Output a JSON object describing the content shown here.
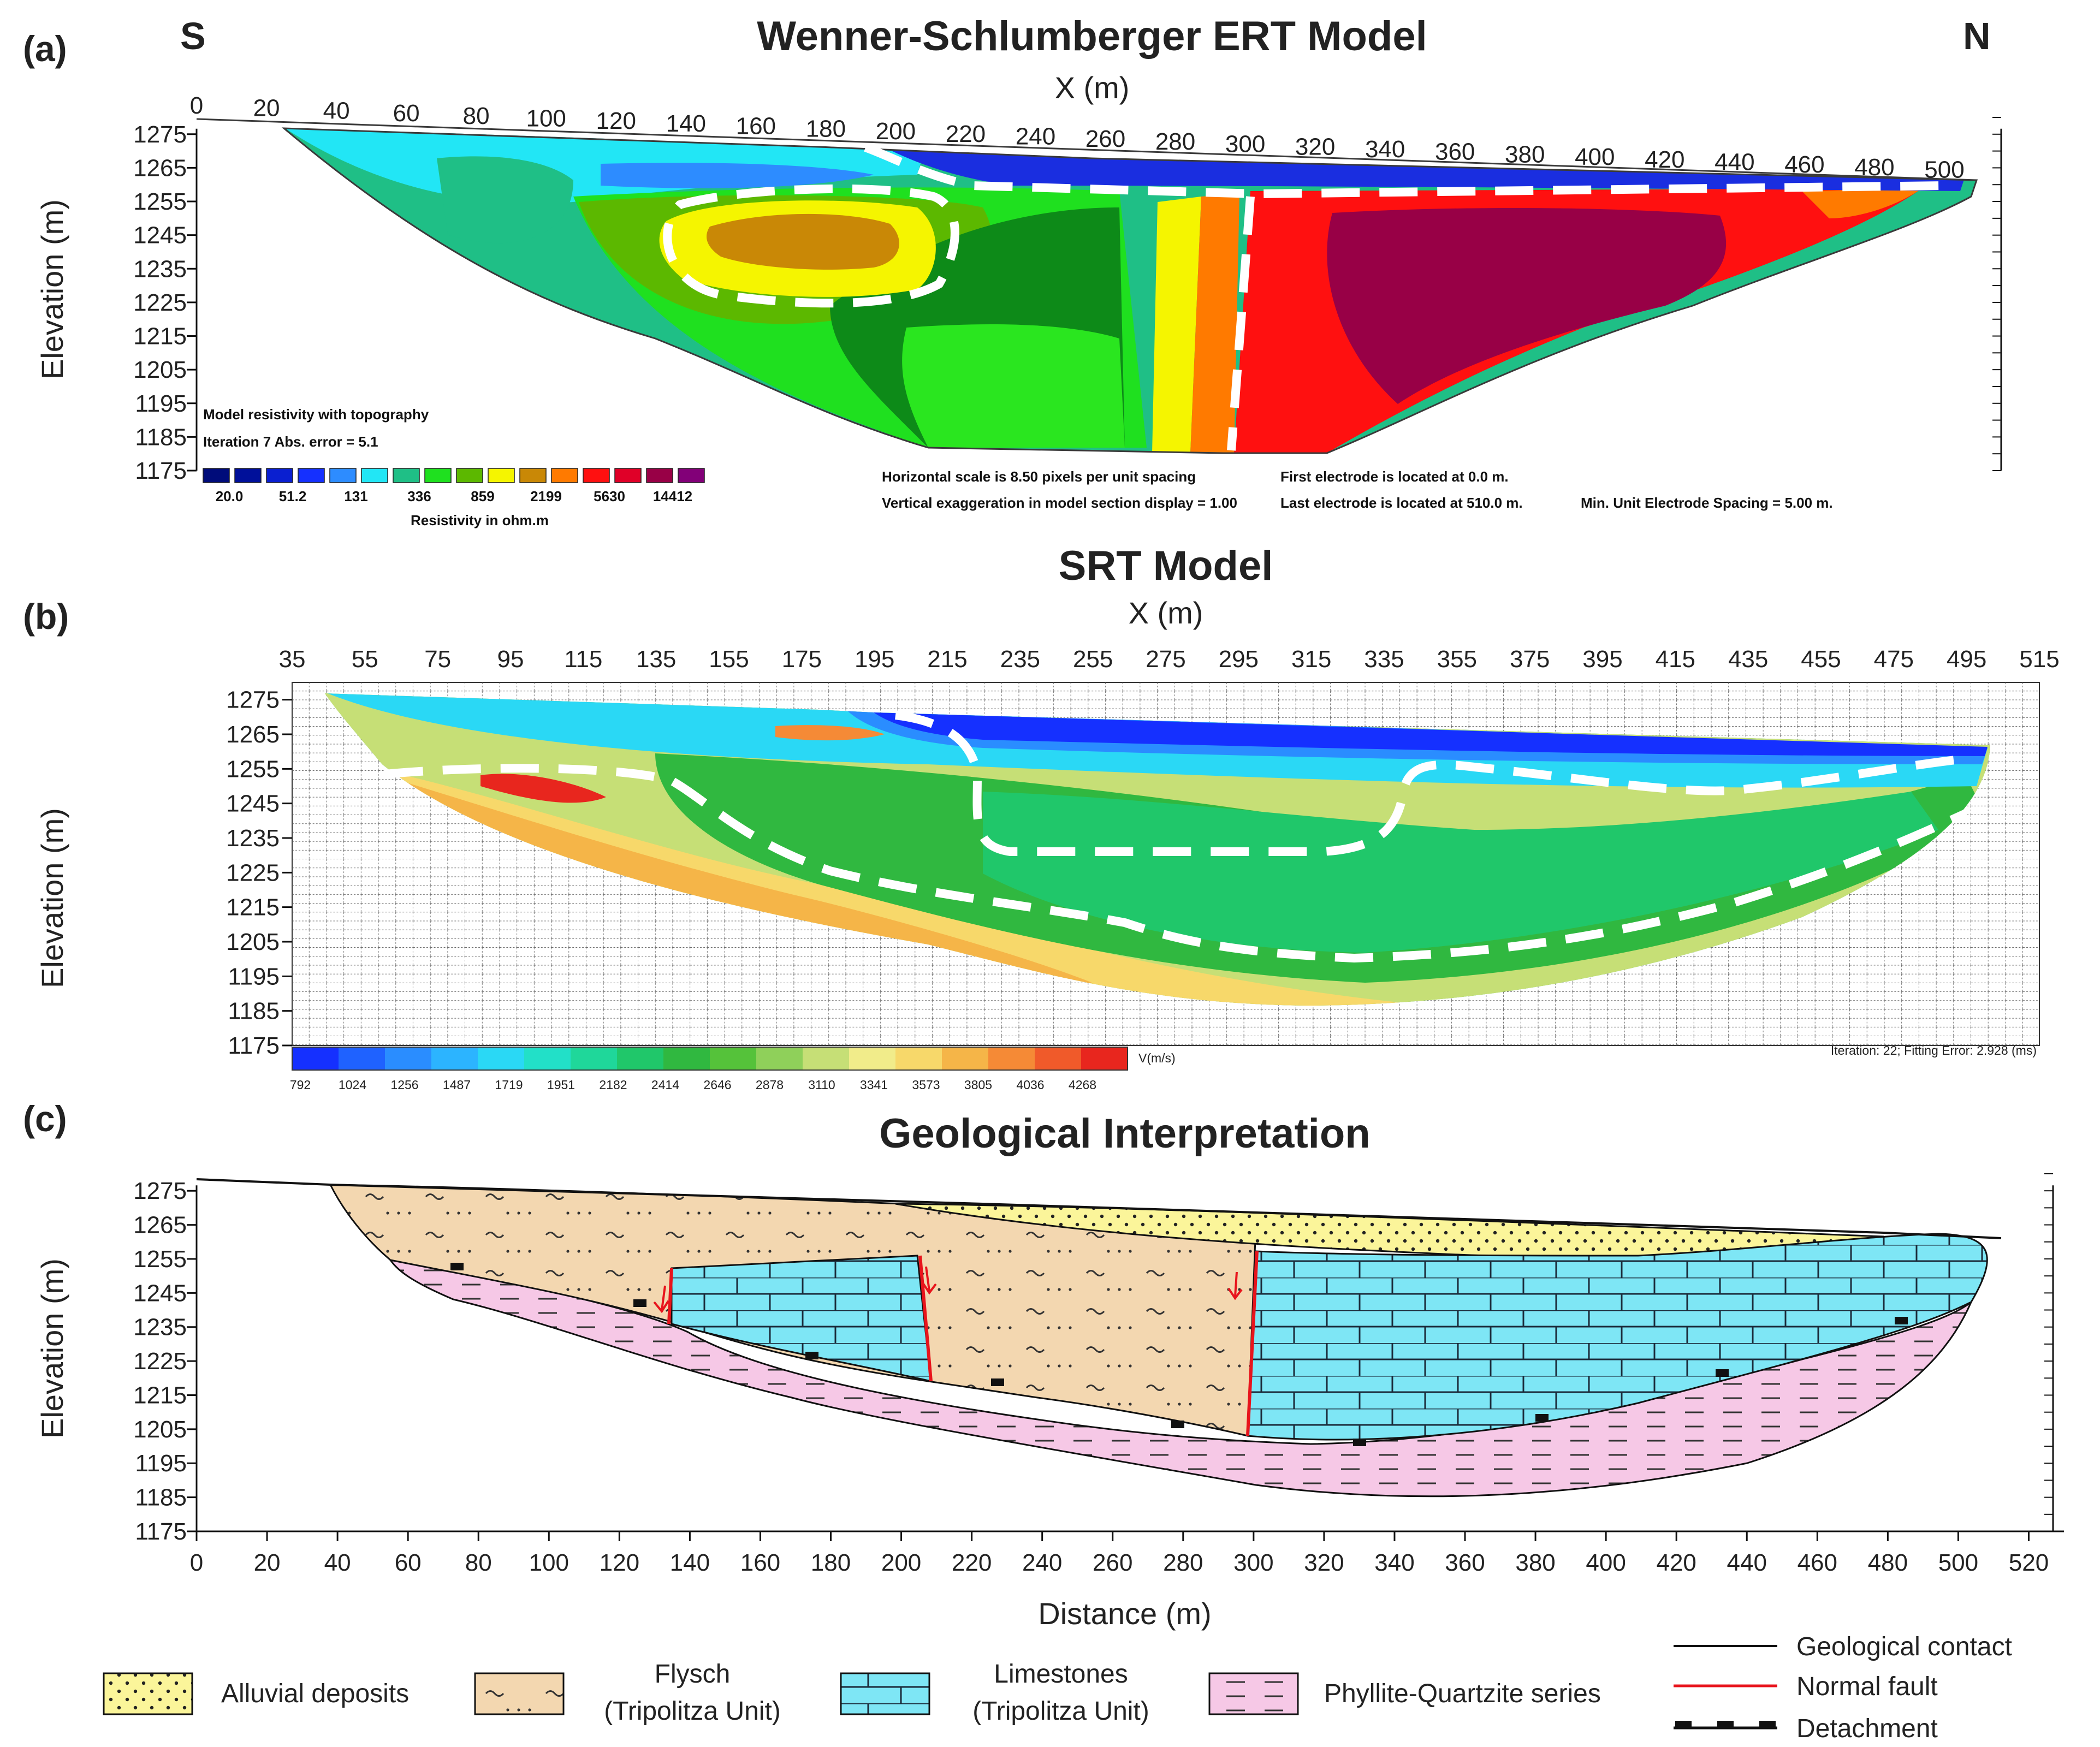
{
  "figure": {
    "panel_a_label": "(a)",
    "panel_b_label": "(b)",
    "panel_c_label": "(c)",
    "dir_south": "S",
    "dir_north": "N"
  },
  "chart_data": [
    {
      "type": "heatmap",
      "title": "Wenner-Schlumberger ERT Model",
      "xlabel": "X (m)",
      "ylabel": "Elevation (m)",
      "xticks": [
        0,
        20,
        40,
        60,
        80,
        100,
        120,
        140,
        160,
        180,
        200,
        220,
        240,
        260,
        280,
        300,
        320,
        340,
        360,
        380,
        400,
        420,
        440,
        460,
        480,
        500
      ],
      "yticks": [
        1275,
        1265,
        1255,
        1245,
        1235,
        1225,
        1215,
        1205,
        1195,
        1185,
        1175
      ],
      "xlim": [
        0,
        510
      ],
      "ylim": [
        1175,
        1280
      ],
      "colorbar_title": "Resistivity in ohm.m",
      "colorbar_labels": [
        "20.0",
        "51.2",
        "131",
        "336",
        "859",
        "2199",
        "5630",
        "14412"
      ],
      "colorbar_colors": [
        "#000c7a",
        "#00109a",
        "#0a1fd0",
        "#1530ff",
        "#2d8cff",
        "#22e6f5",
        "#1fbf86",
        "#1fe01f",
        "#5cb800",
        "#f5f500",
        "#c98806",
        "#ff7a00",
        "#ff1010",
        "#e00028",
        "#980046",
        "#820078"
      ],
      "info": {
        "line1": "Model resistivity with topography",
        "line2": "Iteration 7 Abs. error = 5.1",
        "line3": "Horizontal scale is 8.50 pixels per unit spacing",
        "line4": "Vertical exaggeration in model section display = 1.00",
        "line5": "First electrode is located at 0.0  m.",
        "line6": "Last electrode is located at 510.0 m.",
        "line7": "Min. Unit Electrode Spacing = 5.00 m."
      },
      "zones": [
        {
          "name": "shallow-conductive-layer",
          "x": [
            200,
            500
          ],
          "elev": [
            1255,
            1265
          ],
          "color": "#1a2ee0"
        },
        {
          "name": "upper-cyan-layer",
          "x": [
            25,
            200
          ],
          "elev": [
            1255,
            1272
          ],
          "color": "#22e6f5"
        },
        {
          "name": "green-anomaly-south",
          "x": [
            120,
            210
          ],
          "elev": [
            1225,
            1252
          ],
          "color": "#f5f500"
        },
        {
          "name": "high-resistivity-north",
          "x": [
            300,
            490
          ],
          "elev": [
            1180,
            1255
          ],
          "color": "#ff1010"
        },
        {
          "name": "core-max-resistivity",
          "x": [
            320,
            440
          ],
          "elev": [
            1205,
            1248
          ],
          "color": "#980046"
        }
      ]
    },
    {
      "type": "heatmap",
      "title": "SRT Model",
      "xlabel": "X (m)",
      "ylabel": "Elevation (m)",
      "xticks": [
        35,
        55,
        75,
        95,
        115,
        135,
        155,
        175,
        195,
        215,
        235,
        255,
        275,
        295,
        315,
        335,
        355,
        375,
        395,
        415,
        435,
        455,
        475,
        495,
        515
      ],
      "yticks": [
        1275,
        1265,
        1255,
        1245,
        1235,
        1225,
        1215,
        1205,
        1195,
        1185,
        1175
      ],
      "xlim": [
        35,
        515
      ],
      "ylim": [
        1175,
        1280
      ],
      "colorbar_title": "V(m/s)",
      "colorbar_labels": [
        "792",
        "1024",
        "1256",
        "1487",
        "1719",
        "1951",
        "2182",
        "2414",
        "2646",
        "2878",
        "3110",
        "3341",
        "3573",
        "3805",
        "4036",
        "4268"
      ],
      "colorbar_colors": [
        "#1530ff",
        "#1f62ff",
        "#2a8dff",
        "#2cb4ff",
        "#2ad8f5",
        "#22e0c8",
        "#1fd79a",
        "#20c76a",
        "#30b840",
        "#55c23a",
        "#8fd05a",
        "#c6df76",
        "#f1ec8a",
        "#f7d86a",
        "#f5b548",
        "#f58a36",
        "#f05a2a",
        "#e8261e"
      ],
      "info": "Iteration: 22; Fitting Error: 2.928 (ms)",
      "zones": [
        {
          "name": "low-velocity-top",
          "x": [
            195,
            505
          ],
          "elev": [
            1255,
            1268
          ],
          "color": "#1530ff"
        },
        {
          "name": "high-velocity-south",
          "x": [
            70,
            110
          ],
          "elev": [
            1238,
            1248
          ],
          "color": "#e8261e"
        },
        {
          "name": "medium-velocity-core",
          "x": [
            240,
            470
          ],
          "elev": [
            1195,
            1250
          ],
          "color": "#20c76a"
        }
      ]
    },
    {
      "type": "diagram",
      "title": "Geological Interpretation",
      "xlabel": "Distance (m)",
      "ylabel": "Elevation (m)",
      "xticks": [
        0,
        20,
        40,
        60,
        80,
        100,
        120,
        140,
        160,
        180,
        200,
        220,
        240,
        260,
        280,
        300,
        320,
        340,
        360,
        380,
        400,
        420,
        440,
        460,
        480,
        500,
        520
      ],
      "yticks": [
        1275,
        1265,
        1255,
        1245,
        1235,
        1225,
        1215,
        1205,
        1195,
        1185,
        1175
      ],
      "xlim": [
        0,
        530
      ],
      "ylim": [
        1175,
        1280
      ],
      "units": [
        {
          "name": "alluvial-deposits",
          "label": "Alluvial deposits",
          "label_line2": "",
          "color": "#fbf59a"
        },
        {
          "name": "flysch",
          "label": "Flysch",
          "label_line2": "(Tripolitza Unit)",
          "color": "#f3d7b0"
        },
        {
          "name": "limestones",
          "label": "Limestones",
          "label_line2": "(Tripolitza Unit)",
          "color": "#7ee6f5"
        },
        {
          "name": "phyllite-quartzite",
          "label": "Phyllite-Quartzite series",
          "label_line2": "",
          "color": "#f6c8e6"
        }
      ],
      "line_legend": [
        {
          "name": "geological-contact",
          "label": "Geological contact",
          "color": "#000000"
        },
        {
          "name": "normal-fault",
          "label": "Normal fault",
          "color": "#e8141c"
        },
        {
          "name": "detachment",
          "label": "Detachment",
          "color": "#000000"
        }
      ],
      "normal_faults_x": [
        135,
        208,
        295
      ]
    }
  ]
}
